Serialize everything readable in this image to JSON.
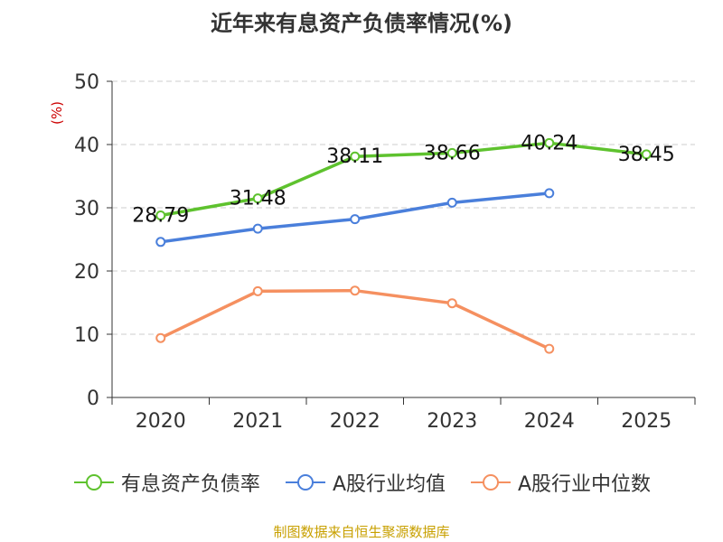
{
  "chart_data": {
    "type": "line",
    "title": "近年来有息资产负债率情况(%)",
    "ylabel": "(%)",
    "xlabel": "",
    "categories": [
      "2020",
      "2021",
      "2022",
      "2023",
      "2024",
      "2025"
    ],
    "ylim": [
      0,
      50
    ],
    "yticks": [
      0,
      10,
      20,
      30,
      40,
      50
    ],
    "grid": true,
    "legend_position": "bottom",
    "series": [
      {
        "name": "有息资产负债率",
        "color": "#5ec22e",
        "values": [
          28.79,
          31.48,
          38.11,
          38.66,
          40.24,
          38.45
        ],
        "labels": [
          "28.79",
          "31.48",
          "38.11",
          "38.66",
          "40.24",
          "38.45"
        ]
      },
      {
        "name": "A股行业均值",
        "color": "#4a7fdb",
        "values": [
          24.6,
          26.7,
          28.2,
          30.8,
          32.3,
          null
        ]
      },
      {
        "name": "A股行业中位数",
        "color": "#f59060",
        "values": [
          9.4,
          16.8,
          16.9,
          14.9,
          7.7,
          null
        ]
      }
    ],
    "source": "制图数据来自恒生聚源数据库"
  }
}
